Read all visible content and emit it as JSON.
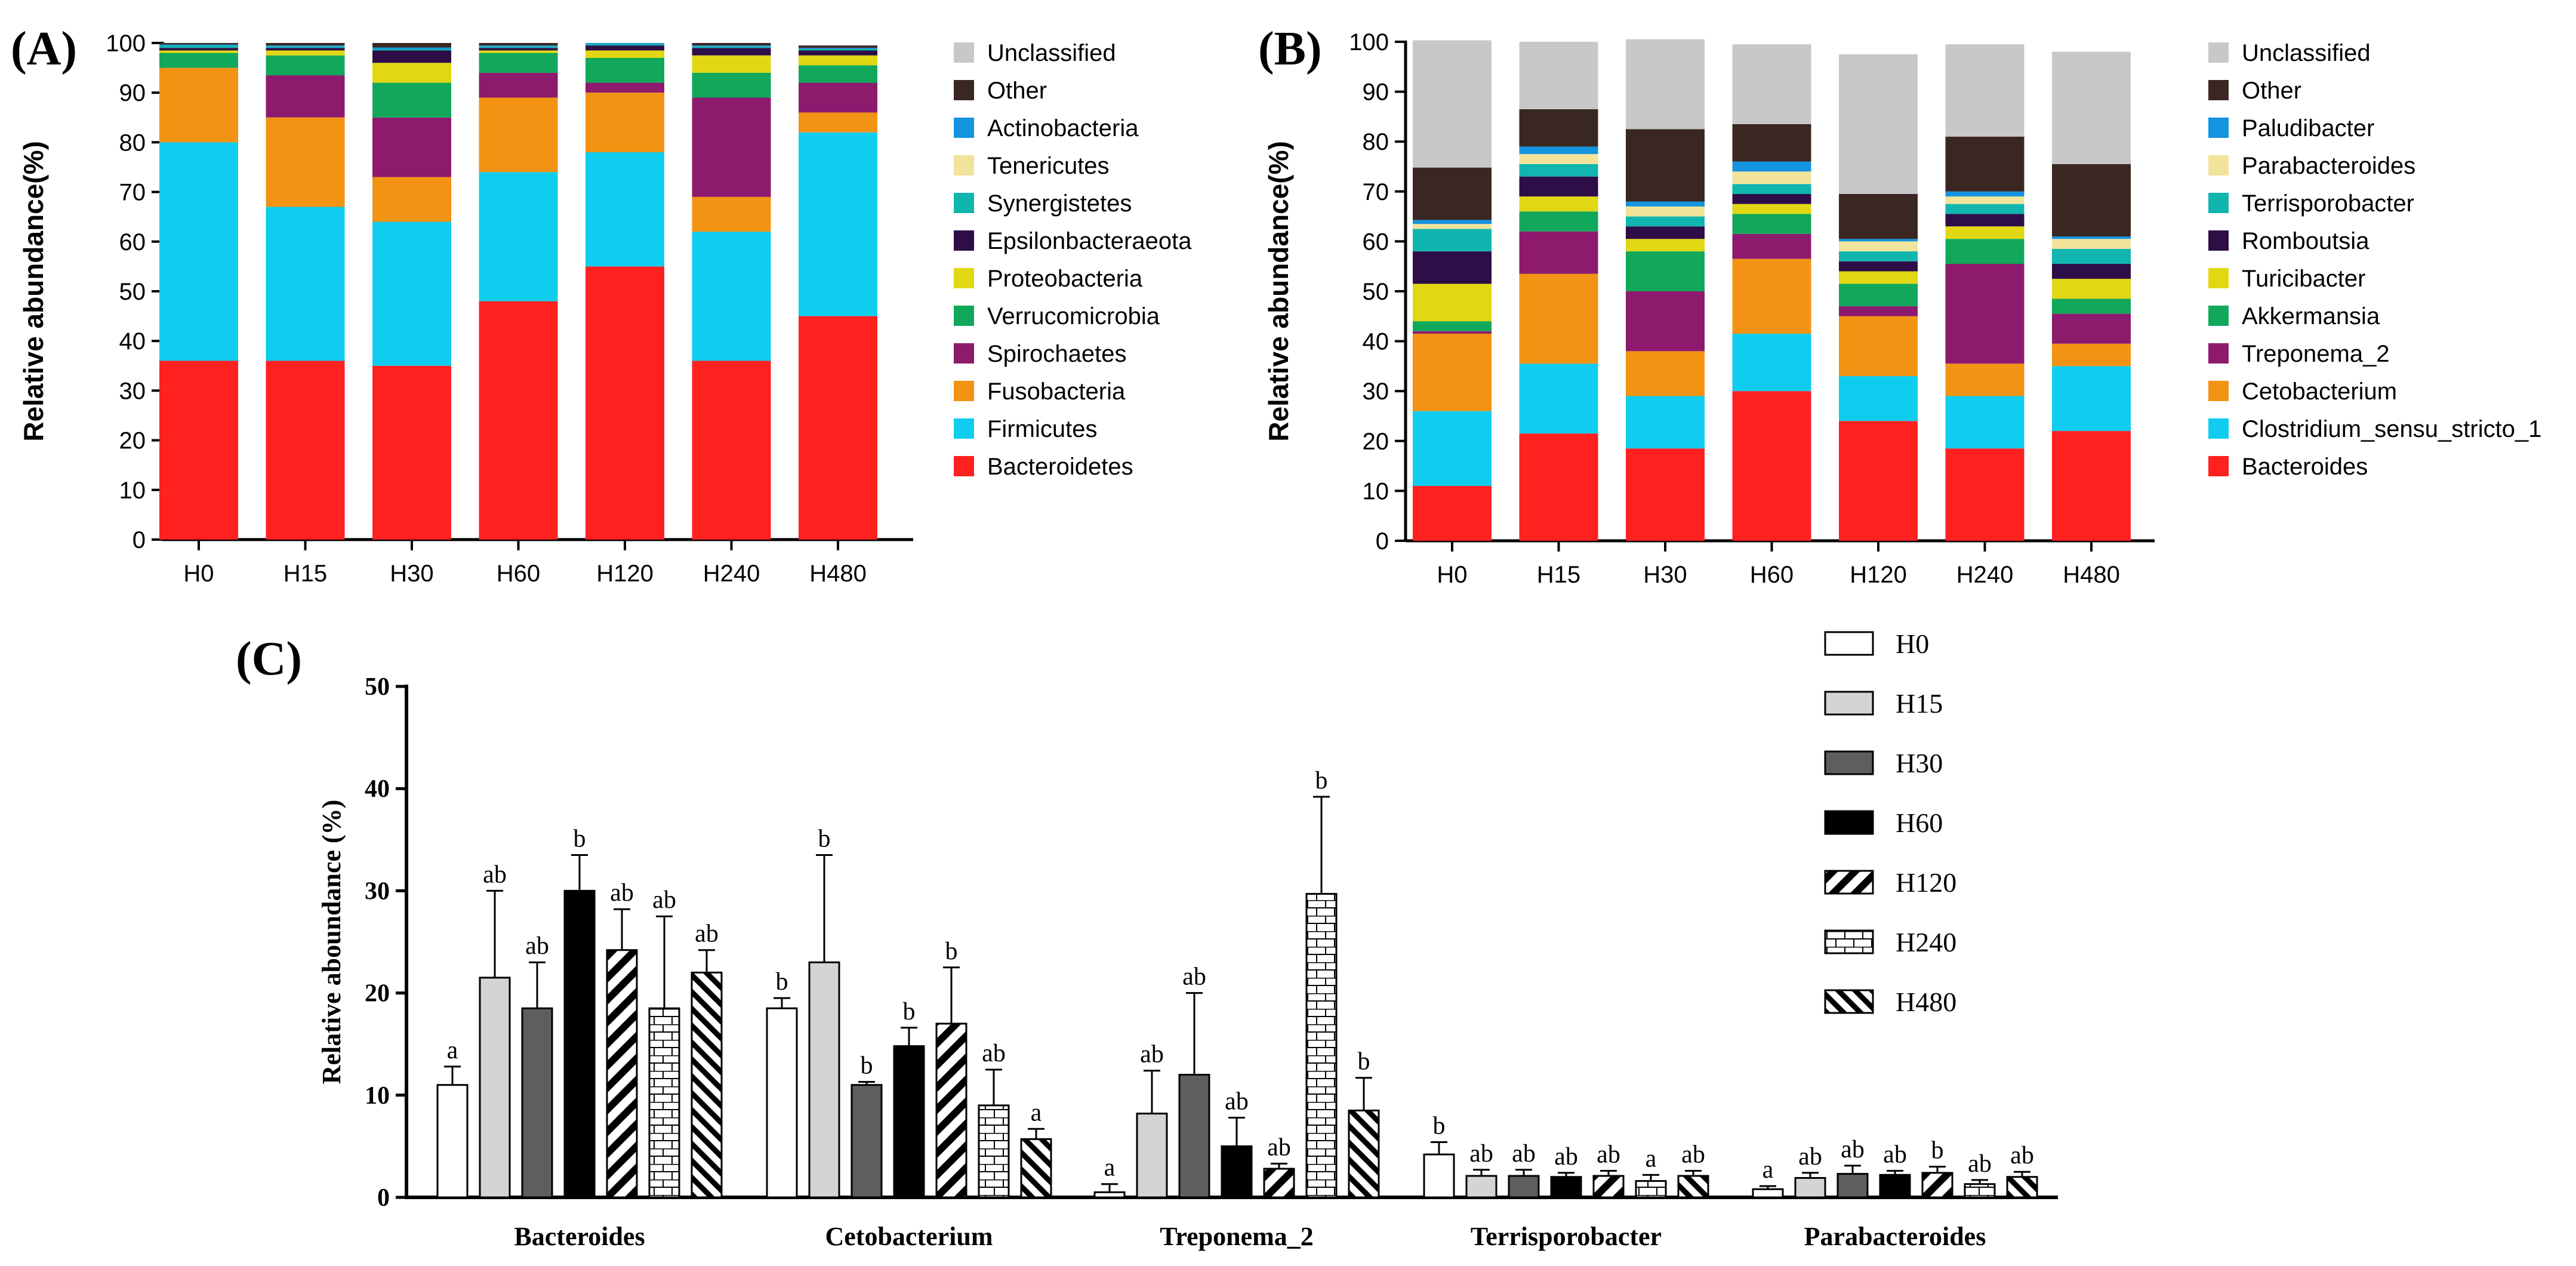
{
  "chart_data": [
    {
      "type": "bar",
      "stacked": true,
      "panel_label": "(A)",
      "ylabel": "Relative abundance(%)",
      "ylim": [
        0,
        100
      ],
      "yticks": [
        0,
        10,
        20,
        30,
        40,
        50,
        60,
        70,
        80,
        90,
        100
      ],
      "categories": [
        "H0",
        "H15",
        "H30",
        "H60",
        "H120",
        "H240",
        "H480"
      ],
      "legend_position": "right",
      "series": [
        {
          "name": "Bacteroidetes",
          "color": "#ff2020",
          "values": [
            36,
            36,
            35,
            48,
            55,
            36,
            45
          ]
        },
        {
          "name": "Firmicutes",
          "color": "#10cdef",
          "values": [
            44,
            31,
            29,
            26,
            23,
            26,
            37
          ]
        },
        {
          "name": "Fusobacteria",
          "color": "#f39313",
          "values": [
            15,
            18,
            9,
            15,
            12,
            7,
            4
          ]
        },
        {
          "name": "Spirochaetes",
          "color": "#8e1a6e",
          "values": [
            0,
            8.5,
            12,
            5,
            2,
            20,
            6
          ]
        },
        {
          "name": "Verrucomicrobia",
          "color": "#11a85b",
          "values": [
            3,
            4,
            7,
            4,
            5,
            5,
            3.5
          ]
        },
        {
          "name": "Proteobacteria",
          "color": "#e1d713",
          "values": [
            0.5,
            1,
            4,
            0.5,
            1.5,
            3.5,
            2
          ]
        },
        {
          "name": "Epsilonbacteraeota",
          "color": "#2d0e47",
          "values": [
            0.5,
            0.5,
            2.5,
            0.5,
            1,
            1.5,
            1
          ]
        },
        {
          "name": "Synergistetes",
          "color": "#11b5b0",
          "values": [
            0.5,
            0.3,
            0.3,
            0.3,
            0.3,
            0.3,
            0.3
          ]
        },
        {
          "name": "Tenericutes",
          "color": "#f1e49a",
          "values": [
            0,
            0,
            0,
            0,
            0,
            0,
            0
          ]
        },
        {
          "name": "Actinobacteria",
          "color": "#1493df",
          "values": [
            0.2,
            0.2,
            0.3,
            0.2,
            0.2,
            0.2,
            0.2
          ]
        },
        {
          "name": "Other",
          "color": "#3b2722",
          "values": [
            0.3,
            0.5,
            0.9,
            0.5,
            0,
            0.5,
            0.5
          ]
        },
        {
          "name": "Unclassified",
          "color": "#c8c8c8",
          "values": [
            0,
            0,
            0,
            0,
            0,
            0,
            0
          ]
        }
      ]
    },
    {
      "type": "bar",
      "stacked": true,
      "panel_label": "(B)",
      "ylabel": "Relative abundance(%)",
      "ylim": [
        0,
        100
      ],
      "yticks": [
        0,
        10,
        20,
        30,
        40,
        50,
        60,
        70,
        80,
        90,
        100
      ],
      "categories": [
        "H0",
        "H15",
        "H30",
        "H60",
        "H120",
        "H240",
        "H480"
      ],
      "legend_position": "right",
      "series": [
        {
          "name": "Bacteroides",
          "color": "#ff2020",
          "values": [
            11,
            21.5,
            18.5,
            30,
            24,
            18.5,
            22
          ]
        },
        {
          "name": "Clostridium_sensu_stricto_1",
          "color": "#10cdef",
          "values": [
            15,
            14,
            10.5,
            11.5,
            9,
            10.5,
            13
          ]
        },
        {
          "name": "Cetobacterium",
          "color": "#f39313",
          "values": [
            15.5,
            18,
            9,
            15,
            12,
            6.5,
            4.5
          ]
        },
        {
          "name": "Treponema_2",
          "color": "#8e1a6e",
          "values": [
            0.5,
            8.5,
            12,
            5,
            2,
            20,
            6
          ]
        },
        {
          "name": "Akkermansia",
          "color": "#11a85b",
          "values": [
            2,
            4,
            8,
            4,
            4.5,
            5,
            3
          ]
        },
        {
          "name": "Turicibacter",
          "color": "#e1d713",
          "values": [
            7.5,
            3,
            2.5,
            2,
            2.5,
            2.5,
            4
          ]
        },
        {
          "name": "Romboutsia",
          "color": "#2d0e47",
          "values": [
            6.5,
            4,
            2.5,
            2,
            2,
            2.5,
            3
          ]
        },
        {
          "name": "Terrisporobacter",
          "color": "#11b5b0",
          "values": [
            4.5,
            2.5,
            2,
            2,
            2,
            2,
            3
          ]
        },
        {
          "name": "Parabacteroides",
          "color": "#f1e49a",
          "values": [
            1,
            2,
            2,
            2.5,
            2,
            1.5,
            2
          ]
        },
        {
          "name": "Paludibacter",
          "color": "#1493df",
          "values": [
            0.8,
            1.5,
            1,
            2,
            0.5,
            1,
            0.5
          ]
        },
        {
          "name": "Other",
          "color": "#3b2722",
          "values": [
            10.5,
            7.5,
            14.5,
            7.5,
            9,
            11,
            14.5
          ]
        },
        {
          "name": "Unclassified",
          "color": "#c8c8c8",
          "values": [
            25.5,
            13.5,
            18,
            16,
            28,
            18.5,
            22.5
          ]
        }
      ]
    },
    {
      "type": "bar",
      "stacked": false,
      "panel_label": "(C)",
      "ylabel": "Relative aboundance (%)",
      "ylim": [
        0,
        50
      ],
      "yticks": [
        0,
        10,
        20,
        30,
        40,
        50
      ],
      "categories": [
        "Bacteroides",
        "Cetobacterium",
        "Treponema_2",
        "Terrisporobacter",
        "Parabacteroides"
      ],
      "legend_position": "top-right",
      "series": [
        {
          "name": "H0",
          "pattern": "open",
          "values": [
            11,
            18.5,
            0.5,
            4.2,
            0.8
          ],
          "errors": [
            1.8,
            1,
            0.8,
            1.2,
            0.3
          ],
          "letters": [
            "a",
            "b",
            "a",
            "b",
            "a"
          ]
        },
        {
          "name": "H15",
          "pattern": "light",
          "values": [
            21.5,
            23,
            8.2,
            2.1,
            1.9
          ],
          "errors": [
            8.5,
            10.5,
            4.2,
            0.6,
            0.5
          ],
          "letters": [
            "ab",
            "b",
            "ab",
            "ab",
            "ab"
          ]
        },
        {
          "name": "H30",
          "pattern": "dark",
          "values": [
            18.5,
            11,
            12,
            2.1,
            2.3
          ],
          "errors": [
            4.5,
            0.3,
            8,
            0.6,
            0.8
          ],
          "letters": [
            "ab",
            "b",
            "ab",
            "ab",
            "ab"
          ]
        },
        {
          "name": "H60",
          "pattern": "black",
          "values": [
            30,
            14.8,
            5,
            2,
            2.2
          ],
          "errors": [
            3.5,
            1.8,
            2.8,
            0.4,
            0.4
          ],
          "letters": [
            "b",
            "b",
            "ab",
            "ab",
            "ab"
          ]
        },
        {
          "name": "H120",
          "pattern": "diag-wide",
          "values": [
            24.2,
            17,
            2.8,
            2.1,
            2.4
          ],
          "errors": [
            4,
            5.5,
            0.5,
            0.5,
            0.6
          ],
          "letters": [
            "ab",
            "b",
            "ab",
            "ab",
            "b"
          ]
        },
        {
          "name": "H240",
          "pattern": "brick",
          "values": [
            18.5,
            9,
            29.7,
            1.6,
            1.3
          ],
          "errors": [
            9,
            3.5,
            9.5,
            0.6,
            0.4
          ],
          "letters": [
            "ab",
            "ab",
            "b",
            "a",
            "ab"
          ]
        },
        {
          "name": "H480",
          "pattern": "diag-narrow",
          "values": [
            22,
            5.7,
            8.5,
            2.1,
            2
          ],
          "errors": [
            2.2,
            1,
            3.2,
            0.5,
            0.5
          ],
          "letters": [
            "ab",
            "a",
            "b",
            "ab",
            "ab"
          ]
        }
      ]
    }
  ]
}
